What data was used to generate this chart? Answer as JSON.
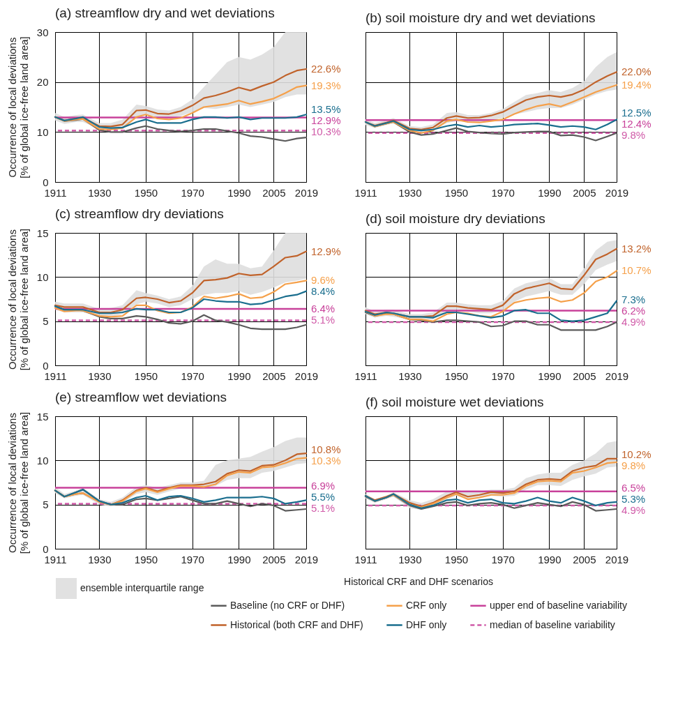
{
  "chart_data": [
    {
      "type": "line",
      "title": "(a) streamflow dry and wet deviations",
      "ylabel": "Occurrence of local deviations\n[% of global ice-free land area]",
      "legend_title": "Historical CRF and DHF scenarios",
      "legend": "bottom",
      "grid": true,
      "x": [
        1911,
        1915,
        1920,
        1923,
        1930,
        1935,
        1940,
        1946,
        1950,
        1955,
        1960,
        1965,
        1970,
        1975,
        1980,
        1985,
        1990,
        1995,
        2000,
        2005,
        2010,
        2015,
        2019
      ],
      "xlim": [
        1911,
        2019
      ],
      "xticks": [
        1911,
        1930,
        1950,
        1970,
        1990,
        2005,
        2019
      ],
      "ylim": [
        0,
        30
      ],
      "yticks": [
        0,
        10,
        20,
        30
      ],
      "series": [
        {
          "name": "Baseline (no CRF or DHF)",
          "color": "#5a5a5a",
          "values": [
            13.0,
            12.2,
            12.4,
            12.6,
            10.4,
            10.0,
            10.0,
            10.8,
            11.2,
            10.6,
            10.3,
            10.1,
            10.3,
            10.6,
            10.6,
            10.2,
            9.8,
            9.2,
            9.0,
            8.6,
            8.2,
            8.7,
            8.9
          ],
          "value_labels": [
            null,
            null,
            null,
            null,
            null,
            null,
            null,
            null,
            null,
            null,
            null,
            null,
            null,
            null,
            null,
            null,
            null,
            null,
            null,
            null,
            null,
            null,
            null
          ]
        },
        {
          "name": "Historical (both CRF and DHF)",
          "color": "#c0622a",
          "values": [
            13.0,
            12.3,
            12.7,
            12.8,
            11.2,
            11.1,
            11.5,
            14.3,
            14.4,
            13.7,
            13.6,
            14.2,
            15.3,
            16.8,
            17.3,
            18.0,
            18.9,
            18.3,
            19.2,
            20.0,
            21.3,
            22.3,
            22.6
          ],
          "value_labels": [
            null,
            null,
            null,
            null,
            null,
            null,
            null,
            null,
            null,
            null,
            null,
            null,
            null,
            null,
            null,
            null,
            null,
            null,
            null,
            null,
            null,
            null,
            "22.6%"
          ],
          "lower": [
            12.3,
            11.6,
            12,
            12,
            10.6,
            10.3,
            10.8,
            13,
            13.5,
            13,
            13,
            13.2,
            14,
            14.8,
            14.6,
            15,
            15.5,
            15,
            15.5,
            16,
            17,
            17.5,
            17.5
          ],
          "upper": [
            13.8,
            13,
            13.4,
            13.5,
            11.8,
            11.8,
            12.5,
            15.5,
            15.2,
            14.5,
            14.3,
            15,
            16.5,
            19,
            21.5,
            24,
            25,
            24.5,
            25.5,
            27,
            30,
            30,
            30
          ]
        },
        {
          "name": "CRF only",
          "color": "#f5a04a",
          "values": [
            13.0,
            12.2,
            12.5,
            12.6,
            10.6,
            10.5,
            10.8,
            13.0,
            13.5,
            12.7,
            12.5,
            12.8,
            13.8,
            15.0,
            15.3,
            15.6,
            16.3,
            15.6,
            16.1,
            16.7,
            17.8,
            19.0,
            19.3
          ],
          "value_labels": [
            null,
            null,
            null,
            null,
            null,
            null,
            null,
            null,
            null,
            null,
            null,
            null,
            null,
            null,
            null,
            null,
            null,
            null,
            null,
            null,
            null,
            null,
            "19.3%"
          ]
        },
        {
          "name": "DHF only",
          "color": "#1a6e8e",
          "values": [
            13.0,
            12.3,
            12.7,
            13.0,
            11.0,
            10.8,
            10.9,
            12.0,
            12.5,
            11.8,
            11.8,
            11.8,
            12.5,
            13.0,
            13.0,
            12.8,
            13.0,
            12.5,
            12.8,
            12.8,
            12.8,
            13.0,
            13.5
          ],
          "value_labels": [
            null,
            null,
            null,
            null,
            null,
            null,
            null,
            null,
            null,
            null,
            null,
            null,
            null,
            null,
            null,
            null,
            null,
            null,
            null,
            null,
            null,
            null,
            "13.5%"
          ]
        }
      ],
      "ref_lines": [
        {
          "axis": "y",
          "value": 12.9,
          "label": "upper end of baseline variability",
          "color": "#c8419a"
        },
        {
          "axis": "y",
          "value": 10.3,
          "label": "median of baseline variability",
          "color": "#d05aa8",
          "line_style": "dashed"
        }
      ],
      "annotations": [
        "ensemble interquartile range",
        "12.9%",
        "10.3%"
      ]
    },
    {
      "type": "line",
      "title": "(b) soil moisture dry and wet deviations",
      "grid": true,
      "tick_labels": "x",
      "x": [
        1911,
        1915,
        1920,
        1923,
        1930,
        1935,
        1940,
        1946,
        1950,
        1955,
        1960,
        1965,
        1970,
        1975,
        1980,
        1985,
        1990,
        1995,
        2000,
        2005,
        2010,
        2015,
        2019
      ],
      "xlim": [
        1911,
        2019
      ],
      "xticks": [
        1911,
        1930,
        1950,
        1970,
        1990,
        2005,
        2019
      ],
      "ylim": [
        0,
        30
      ],
      "yticks": [
        0,
        10,
        20,
        30
      ],
      "series": [
        {
          "name": "Baseline (no CRF or DHF)",
          "color": "#5a5a5a",
          "values": [
            12.0,
            11.1,
            11.7,
            12.0,
            10.0,
            9.4,
            9.6,
            10.3,
            10.8,
            10.1,
            9.9,
            9.7,
            9.6,
            9.9,
            10.0,
            10.1,
            10.1,
            9.3,
            9.4,
            9.0,
            8.3,
            9.1,
            9.8
          ],
          "value_labels": [
            null,
            null,
            null,
            null,
            null,
            null,
            null,
            null,
            null,
            null,
            null,
            null,
            null,
            null,
            null,
            null,
            null,
            null,
            null,
            null,
            null,
            null,
            null
          ]
        },
        {
          "name": "Historical (both CRF and DHF)",
          "color": "#c0622a",
          "values": [
            12.0,
            11.3,
            11.9,
            12.3,
            10.7,
            10.5,
            10.9,
            12.8,
            13.2,
            12.8,
            12.9,
            13.3,
            14.0,
            15.2,
            16.4,
            17.0,
            17.3,
            17.0,
            17.5,
            18.5,
            20.0,
            21.2,
            22.0
          ],
          "value_labels": [
            null,
            null,
            null,
            null,
            null,
            null,
            null,
            null,
            null,
            null,
            null,
            null,
            null,
            null,
            null,
            null,
            null,
            null,
            null,
            null,
            null,
            null,
            "22.0%"
          ],
          "lower": [
            11.4,
            10.8,
            11.4,
            11.8,
            10.1,
            9.8,
            10.3,
            11.8,
            12.2,
            12,
            12,
            12.3,
            12.8,
            13.5,
            14,
            14.5,
            14.8,
            14.8,
            15.5,
            16.5,
            17.5,
            18.2,
            18.5
          ],
          "upper": [
            12.6,
            11.8,
            12.4,
            12.8,
            11.2,
            11,
            11.5,
            13.8,
            14,
            13.4,
            13.4,
            13.8,
            14.6,
            16,
            17.4,
            17.8,
            18.4,
            18,
            18.8,
            20.2,
            23,
            25,
            26
          ]
        },
        {
          "name": "CRF only",
          "color": "#f5a04a",
          "values": [
            12.0,
            11.1,
            11.7,
            12.0,
            10.3,
            9.8,
            10.3,
            12.2,
            12.5,
            12.0,
            11.9,
            12.2,
            12.5,
            13.6,
            14.5,
            15.2,
            15.6,
            15.1,
            16.0,
            17.0,
            18.0,
            18.8,
            19.4
          ],
          "value_labels": [
            null,
            null,
            null,
            null,
            null,
            null,
            null,
            null,
            null,
            null,
            null,
            null,
            null,
            null,
            null,
            null,
            null,
            null,
            null,
            null,
            null,
            null,
            "19.4%"
          ]
        },
        {
          "name": "DHF only",
          "color": "#1a6e8e",
          "values": [
            12.0,
            11.2,
            11.8,
            12.2,
            10.5,
            10.3,
            10.5,
            11.2,
            11.5,
            11.0,
            11.3,
            11.0,
            11.2,
            11.5,
            11.6,
            11.7,
            11.4,
            11.0,
            11.2,
            11.0,
            10.5,
            11.5,
            12.5
          ],
          "value_labels": [
            null,
            null,
            null,
            null,
            null,
            null,
            null,
            null,
            null,
            null,
            null,
            null,
            null,
            null,
            null,
            null,
            null,
            null,
            null,
            null,
            null,
            null,
            "12.5%"
          ]
        }
      ],
      "ref_lines": [
        {
          "axis": "y",
          "value": 12.4,
          "color": "#c8419a"
        },
        {
          "axis": "y",
          "value": 9.8,
          "color": "#d05aa8",
          "line_style": "dashed"
        }
      ],
      "annotations": [
        "12.4%",
        "9.8%"
      ]
    },
    {
      "type": "line",
      "title": "(c) streamflow dry deviations",
      "ylabel": "Occurrence of local deviations\n[% of global ice-free land area]",
      "grid": true,
      "x": [
        1911,
        1915,
        1920,
        1923,
        1930,
        1935,
        1940,
        1946,
        1950,
        1955,
        1960,
        1965,
        1970,
        1975,
        1980,
        1985,
        1990,
        1995,
        2000,
        2005,
        2010,
        2015,
        2019
      ],
      "xlim": [
        1911,
        2019
      ],
      "xticks": [
        1911,
        1930,
        1950,
        1970,
        1990,
        2005,
        2019
      ],
      "ylim": [
        0,
        15
      ],
      "yticks": [
        0,
        5,
        10,
        15
      ],
      "series": [
        {
          "name": "Baseline (no CRF or DHF)",
          "color": "#5a5a5a",
          "values": [
            6.7,
            6.3,
            6.3,
            6.2,
            5.5,
            5.3,
            5.3,
            5.6,
            5.5,
            5.2,
            4.8,
            4.7,
            5.0,
            5.7,
            5.1,
            4.9,
            4.6,
            4.2,
            4.1,
            4.1,
            4.1,
            4.3,
            4.6
          ],
          "value_labels": [
            null,
            null,
            null,
            null,
            null,
            null,
            null,
            null,
            null,
            null,
            null,
            null,
            null,
            null,
            null,
            null,
            null,
            null,
            null,
            null,
            null,
            null,
            null
          ]
        },
        {
          "name": "Historical (both CRF and DHF)",
          "color": "#c0622a",
          "values": [
            6.8,
            6.6,
            6.6,
            6.6,
            6.0,
            6.0,
            6.3,
            7.6,
            7.7,
            7.5,
            7.1,
            7.3,
            8.2,
            9.6,
            9.7,
            9.9,
            10.4,
            10.2,
            10.3,
            11.2,
            12.2,
            12.4,
            12.9
          ],
          "value_labels": [
            null,
            null,
            null,
            null,
            null,
            null,
            null,
            null,
            null,
            null,
            null,
            null,
            null,
            null,
            null,
            null,
            null,
            null,
            null,
            null,
            null,
            null,
            "12.9%"
          ],
          "lower": [
            6.3,
            6,
            6,
            6,
            5.6,
            5.5,
            5.8,
            6.9,
            7.2,
            7,
            6.6,
            6.8,
            7.5,
            8,
            8.2,
            8.2,
            8.4,
            8,
            8.3,
            8.8,
            9.4,
            9.6,
            9.8
          ],
          "upper": [
            7.2,
            7,
            7,
            7,
            6.4,
            6.5,
            6.8,
            8.5,
            8.2,
            7.9,
            7.5,
            7.8,
            9,
            11.2,
            12,
            11.5,
            11.5,
            11,
            11.2,
            13,
            15,
            15,
            15
          ]
        },
        {
          "name": "CRF only",
          "color": "#f5a04a",
          "values": [
            6.5,
            6.1,
            6.2,
            6.2,
            5.6,
            5.5,
            5.6,
            6.8,
            6.8,
            6.2,
            5.9,
            6.0,
            6.6,
            7.8,
            7.6,
            7.8,
            8.1,
            7.6,
            7.7,
            8.3,
            9.2,
            9.4,
            9.6
          ],
          "value_labels": [
            null,
            null,
            null,
            null,
            null,
            null,
            null,
            null,
            null,
            null,
            null,
            null,
            null,
            null,
            null,
            null,
            null,
            null,
            null,
            null,
            null,
            null,
            "9.6%"
          ]
        },
        {
          "name": "DHF only",
          "color": "#1a6e8e",
          "values": [
            6.7,
            6.3,
            6.3,
            6.3,
            5.9,
            5.9,
            6.0,
            6.4,
            6.3,
            6.3,
            6.0,
            6.0,
            6.5,
            7.5,
            7.3,
            7.2,
            7.2,
            6.9,
            7.0,
            7.4,
            7.8,
            8.0,
            8.4
          ],
          "value_labels": [
            null,
            null,
            null,
            null,
            null,
            null,
            null,
            null,
            null,
            null,
            null,
            null,
            null,
            null,
            null,
            null,
            null,
            null,
            null,
            null,
            null,
            null,
            "8.4%"
          ]
        }
      ],
      "ref_lines": [
        {
          "axis": "y",
          "value": 6.4,
          "color": "#c8419a"
        },
        {
          "axis": "y",
          "value": 5.1,
          "color": "#d05aa8",
          "line_style": "dashed"
        }
      ],
      "annotations": [
        "6.4%",
        "5.1%"
      ]
    },
    {
      "type": "line",
      "title": "(d) soil moisture dry deviations",
      "grid": true,
      "tick_labels": "x",
      "x": [
        1911,
        1915,
        1920,
        1923,
        1930,
        1935,
        1940,
        1946,
        1950,
        1955,
        1960,
        1965,
        1970,
        1975,
        1980,
        1985,
        1990,
        1995,
        2000,
        2005,
        2010,
        2015,
        2019
      ],
      "xlim": [
        1911,
        2019
      ],
      "xticks": [
        1911,
        1930,
        1950,
        1970,
        1990,
        2005,
        2019
      ],
      "ylim": [
        0,
        15
      ],
      "yticks": [
        0,
        5,
        10,
        15
      ],
      "series": [
        {
          "name": "Baseline (no CRF or DHF)",
          "color": "#5a5a5a",
          "values": [
            6.0,
            5.6,
            5.9,
            5.8,
            5.2,
            5.1,
            4.9,
            5.1,
            5.1,
            5.0,
            4.9,
            4.4,
            4.5,
            5.0,
            5.0,
            4.6,
            4.6,
            4.0,
            4.0,
            4.0,
            4.0,
            4.4,
            4.9
          ],
          "value_labels": [
            null,
            null,
            null,
            null,
            null,
            null,
            null,
            null,
            null,
            null,
            null,
            null,
            null,
            null,
            null,
            null,
            null,
            null,
            null,
            null,
            null,
            null,
            null
          ]
        },
        {
          "name": "Historical (both CRF and DHF)",
          "color": "#c0622a",
          "values": [
            6.2,
            5.8,
            6.0,
            5.9,
            5.5,
            5.5,
            5.6,
            6.7,
            6.7,
            6.5,
            6.4,
            6.3,
            6.8,
            8.1,
            8.7,
            9.0,
            9.3,
            8.7,
            8.6,
            10.2,
            12.0,
            12.6,
            13.2
          ],
          "value_labels": [
            null,
            null,
            null,
            null,
            null,
            null,
            null,
            null,
            null,
            null,
            null,
            null,
            null,
            null,
            null,
            null,
            null,
            null,
            null,
            null,
            null,
            null,
            "13.2%"
          ],
          "lower": [
            5.8,
            5.4,
            5.6,
            5.5,
            5.2,
            5.2,
            5.2,
            6.2,
            6.3,
            6.1,
            5.9,
            5.9,
            6.2,
            7.2,
            7.8,
            8.1,
            8.4,
            8,
            8,
            9.2,
            10.8,
            11.4,
            11.8
          ],
          "upper": [
            6.6,
            6.1,
            6.3,
            6.3,
            5.8,
            5.8,
            6,
            7.1,
            7.1,
            6.9,
            6.8,
            6.8,
            7.3,
            8.7,
            9.3,
            9.6,
            9.9,
            9.2,
            9.2,
            11,
            13,
            14,
            14.2
          ]
        },
        {
          "name": "CRF only",
          "color": "#f5a04a",
          "values": [
            6.1,
            5.6,
            5.8,
            5.8,
            5.2,
            5.2,
            5.0,
            5.8,
            6.0,
            5.9,
            5.6,
            5.5,
            6.1,
            7.1,
            7.4,
            7.6,
            7.7,
            7.2,
            7.4,
            8.2,
            9.5,
            10.0,
            10.7
          ],
          "value_labels": [
            null,
            null,
            null,
            null,
            null,
            null,
            null,
            null,
            null,
            null,
            null,
            null,
            null,
            null,
            null,
            null,
            null,
            null,
            null,
            null,
            null,
            null,
            "10.7%"
          ]
        },
        {
          "name": "DHF only",
          "color": "#1a6e8e",
          "values": [
            6.1,
            5.7,
            6.0,
            5.9,
            5.5,
            5.5,
            5.4,
            6.0,
            6.0,
            5.8,
            5.6,
            5.4,
            5.6,
            6.2,
            6.3,
            5.9,
            5.9,
            5.1,
            5.0,
            5.1,
            5.5,
            5.9,
            7.3
          ],
          "value_labels": [
            null,
            null,
            null,
            null,
            null,
            null,
            null,
            null,
            null,
            null,
            null,
            null,
            null,
            null,
            null,
            null,
            null,
            null,
            null,
            null,
            null,
            null,
            "7.3%"
          ]
        }
      ],
      "ref_lines": [
        {
          "axis": "y",
          "value": 6.2,
          "color": "#c8419a"
        },
        {
          "axis": "y",
          "value": 4.9,
          "color": "#d05aa8",
          "line_style": "dashed"
        }
      ],
      "annotations": [
        "6.2%",
        "4.9%"
      ]
    },
    {
      "type": "line",
      "title": "(e) streamflow wet deviations",
      "ylabel": "Occurrence of local deviations\n[% of global ice-free land area]",
      "grid": true,
      "x": [
        1911,
        1915,
        1920,
        1923,
        1930,
        1935,
        1940,
        1946,
        1950,
        1955,
        1960,
        1965,
        1970,
        1975,
        1980,
        1985,
        1990,
        1995,
        2000,
        2005,
        2010,
        2015,
        2019
      ],
      "xlim": [
        1911,
        2019
      ],
      "xticks": [
        1911,
        1930,
        1950,
        1970,
        1990,
        2005,
        2019
      ],
      "ylim": [
        0,
        15
      ],
      "yticks": [
        0,
        5,
        10,
        15
      ],
      "series": [
        {
          "name": "Baseline (no CRF or DHF)",
          "color": "#5a5a5a",
          "values": [
            6.6,
            5.9,
            6.4,
            6.7,
            5.4,
            5.0,
            5.0,
            5.6,
            5.7,
            5.5,
            5.7,
            5.9,
            5.5,
            5.1,
            5.1,
            5.4,
            5.1,
            4.8,
            5.1,
            4.9,
            4.3,
            4.4,
            4.5
          ],
          "value_labels": [
            null,
            null,
            null,
            null,
            null,
            null,
            null,
            null,
            null,
            null,
            null,
            null,
            null,
            null,
            null,
            null,
            null,
            null,
            null,
            null,
            null,
            null,
            null
          ]
        },
        {
          "name": "Historical (both CRF and DHF)",
          "color": "#c0622a",
          "values": [
            6.6,
            5.9,
            6.2,
            6.3,
            5.3,
            5.0,
            5.5,
            6.6,
            6.9,
            6.5,
            6.9,
            7.2,
            7.2,
            7.3,
            7.6,
            8.5,
            8.9,
            8.8,
            9.4,
            9.5,
            10.0,
            10.7,
            10.8
          ],
          "value_labels": [
            null,
            null,
            null,
            null,
            null,
            null,
            null,
            null,
            null,
            null,
            null,
            null,
            null,
            null,
            null,
            null,
            null,
            null,
            null,
            null,
            null,
            null,
            "10.8%"
          ],
          "lower": [
            6.3,
            5.7,
            6,
            6.1,
            5,
            4.8,
            5.2,
            6.2,
            6.4,
            6.1,
            6.5,
            6.8,
            6.8,
            6.8,
            7.1,
            7.8,
            8,
            8,
            8.6,
            8.8,
            9.2,
            9.6,
            9.7
          ],
          "upper": [
            7,
            6.2,
            6.6,
            6.9,
            5.6,
            5.3,
            5.8,
            7,
            7.2,
            6.9,
            7.2,
            7.5,
            7.5,
            7.7,
            9.5,
            10,
            10.2,
            10.4,
            11,
            11.5,
            12.2,
            12.6,
            12.6
          ]
        },
        {
          "name": "CRF only",
          "color": "#f5a04a",
          "values": [
            6.6,
            5.9,
            6.2,
            6.3,
            5.3,
            5.0,
            5.4,
            6.5,
            6.8,
            6.4,
            6.8,
            7.1,
            7.1,
            7.0,
            7.3,
            8.3,
            8.7,
            8.6,
            9.2,
            9.3,
            9.7,
            10.2,
            10.3
          ],
          "value_labels": [
            null,
            null,
            null,
            null,
            null,
            null,
            null,
            null,
            null,
            null,
            null,
            null,
            null,
            null,
            null,
            null,
            null,
            null,
            null,
            null,
            null,
            null,
            "10.3%"
          ]
        },
        {
          "name": "DHF only",
          "color": "#1a6e8e",
          "values": [
            6.6,
            5.9,
            6.4,
            6.7,
            5.4,
            5.0,
            5.2,
            5.8,
            6.0,
            5.5,
            5.9,
            6.0,
            5.7,
            5.3,
            5.5,
            5.8,
            5.8,
            5.8,
            5.9,
            5.7,
            5.1,
            5.3,
            5.5
          ],
          "value_labels": [
            null,
            null,
            null,
            null,
            null,
            null,
            null,
            null,
            null,
            null,
            null,
            null,
            null,
            null,
            null,
            null,
            null,
            null,
            null,
            null,
            null,
            null,
            "5.5%"
          ]
        }
      ],
      "ref_lines": [
        {
          "axis": "y",
          "value": 6.9,
          "color": "#c8419a"
        },
        {
          "axis": "y",
          "value": 5.1,
          "color": "#d05aa8",
          "line_style": "dashed"
        }
      ],
      "annotations": [
        "6.9%",
        "5.1%"
      ]
    },
    {
      "type": "line",
      "title": "(f) soil moisture wet deviations",
      "grid": true,
      "tick_labels": "x",
      "x": [
        1911,
        1915,
        1920,
        1923,
        1930,
        1935,
        1940,
        1946,
        1950,
        1955,
        1960,
        1965,
        1970,
        1975,
        1980,
        1985,
        1990,
        1995,
        2000,
        2005,
        2010,
        2015,
        2019
      ],
      "xlim": [
        1911,
        2019
      ],
      "xticks": [
        1911,
        1930,
        1950,
        1970,
        1990,
        2005,
        2019
      ],
      "ylim": [
        0,
        15
      ],
      "yticks": [
        0,
        5,
        10,
        15
      ],
      "series": [
        {
          "name": "Baseline (no CRF or DHF)",
          "color": "#5a5a5a",
          "values": [
            5.9,
            5.4,
            5.8,
            6.1,
            4.9,
            4.5,
            4.8,
            5.2,
            5.3,
            4.9,
            5.1,
            5.2,
            5.0,
            4.6,
            4.9,
            5.2,
            5.0,
            4.8,
            5.3,
            5.0,
            4.3,
            4.4,
            4.5
          ],
          "value_labels": [
            null,
            null,
            null,
            null,
            null,
            null,
            null,
            null,
            null,
            null,
            null,
            null,
            null,
            null,
            null,
            null,
            null,
            null,
            null,
            null,
            null,
            null,
            null
          ]
        },
        {
          "name": "Historical (both CRF and DHF)",
          "color": "#c0622a",
          "values": [
            6.0,
            5.5,
            5.9,
            6.2,
            5.2,
            4.8,
            5.2,
            6.0,
            6.4,
            5.9,
            6.1,
            6.4,
            6.3,
            6.5,
            7.3,
            7.8,
            7.9,
            7.8,
            8.8,
            9.2,
            9.4,
            10.2,
            10.2
          ],
          "value_labels": [
            null,
            null,
            null,
            null,
            null,
            null,
            null,
            null,
            null,
            null,
            null,
            null,
            null,
            null,
            null,
            null,
            null,
            null,
            null,
            null,
            null,
            null,
            "10.2%"
          ],
          "lower": [
            5.7,
            5.2,
            5.6,
            5.9,
            4.6,
            4.4,
            4.8,
            5.6,
            6,
            5.6,
            5.7,
            6,
            5.9,
            6,
            6.7,
            7.2,
            7.2,
            7.1,
            7.8,
            8.2,
            8.5,
            9.2,
            9.3
          ],
          "upper": [
            6.2,
            5.6,
            6,
            6.4,
            5.5,
            5.2,
            5.6,
            6.5,
            6.7,
            6.4,
            6.5,
            6.7,
            6.7,
            6.9,
            8,
            8.4,
            8.6,
            8.6,
            9.5,
            10,
            10.8,
            12,
            12.2
          ]
        },
        {
          "name": "CRF only",
          "color": "#f5a04a",
          "values": [
            6.0,
            5.4,
            5.8,
            6.1,
            5.0,
            4.7,
            5.1,
            5.8,
            6.2,
            5.6,
            5.8,
            6.1,
            6.1,
            6.3,
            7.1,
            7.6,
            7.7,
            7.6,
            8.6,
            8.8,
            9.2,
            9.7,
            9.8
          ],
          "value_labels": [
            null,
            null,
            null,
            null,
            null,
            null,
            null,
            null,
            null,
            null,
            null,
            null,
            null,
            null,
            null,
            null,
            null,
            null,
            null,
            null,
            null,
            null,
            "9.8%"
          ]
        },
        {
          "name": "DHF only",
          "color": "#1a6e8e",
          "values": [
            6.0,
            5.4,
            5.8,
            6.2,
            5.0,
            4.6,
            4.9,
            5.5,
            5.6,
            5.2,
            5.5,
            5.6,
            5.2,
            5.1,
            5.4,
            5.8,
            5.4,
            5.2,
            5.8,
            5.4,
            4.9,
            5.2,
            5.3
          ],
          "value_labels": [
            null,
            null,
            null,
            null,
            null,
            null,
            null,
            null,
            null,
            null,
            null,
            null,
            null,
            null,
            null,
            null,
            null,
            null,
            null,
            null,
            null,
            null,
            "5.3%"
          ]
        }
      ],
      "ref_lines": [
        {
          "axis": "y",
          "value": 6.5,
          "color": "#c8419a"
        },
        {
          "axis": "y",
          "value": 4.9,
          "color": "#d05aa8",
          "line_style": "dashed"
        }
      ],
      "annotations": [
        "6.5%",
        "4.9%"
      ]
    }
  ]
}
